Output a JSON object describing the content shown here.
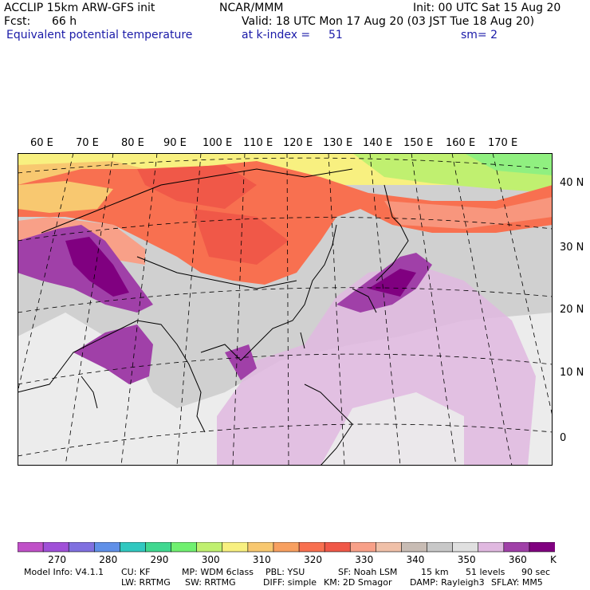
{
  "header": {
    "title_left": "ACCLIP 15km ARW-GFS init",
    "center": "NCAR/MMM",
    "init": "Init: 00 UTC Sat 15 Aug 20",
    "fcst_label": "Fcst:",
    "fcst_value": "66 h",
    "valid": "Valid: 18 UTC Mon 17 Aug 20 (03 JST Tue 18 Aug 20)",
    "field": "Equivalent potential temperature",
    "level": "at k-index =",
    "level_value": "51",
    "smooth": "sm= 2"
  },
  "map": {
    "lon_labels": [
      "60 E",
      "70 E",
      "80 E",
      "90 E",
      "100 E",
      "110 E",
      "120 E",
      "130 E",
      "140 E",
      "150 E",
      "160 E",
      "170 E"
    ],
    "lat_labels": [
      "40 N",
      "30 N",
      "20 N",
      "10 N",
      "0"
    ]
  },
  "colorbar": {
    "colors": [
      "#c050c8",
      "#a050d8",
      "#8070e0",
      "#6090e8",
      "#30c8c0",
      "#40d890",
      "#70f070",
      "#c0f070",
      "#f8f080",
      "#f8c870",
      "#f8a060",
      "#f87050",
      "#f05848",
      "#f8a088",
      "#f0c0a8",
      "#c8bcb4",
      "#c8c8c8",
      "#e0e0e0",
      "#e0b8e0",
      "#a040a8",
      "#800080"
    ],
    "labels": [
      "270",
      "280",
      "290",
      "300",
      "310",
      "320",
      "330",
      "340",
      "350",
      "360"
    ],
    "unit": "K"
  },
  "model_info": {
    "line1": [
      "Model Info: V4.1.1",
      "CU: KF",
      "MP: WDM 6class",
      "PBL: YSU",
      "SF: Noah LSM",
      "15 km",
      "51 levels",
      "90 sec"
    ],
    "line2": [
      "LW: RRTMG",
      "SW: RRTMG",
      "DIFF: simple",
      "KM: 2D Smagor",
      "DAMP: Rayleigh3",
      "SFLAY: MM5"
    ]
  }
}
